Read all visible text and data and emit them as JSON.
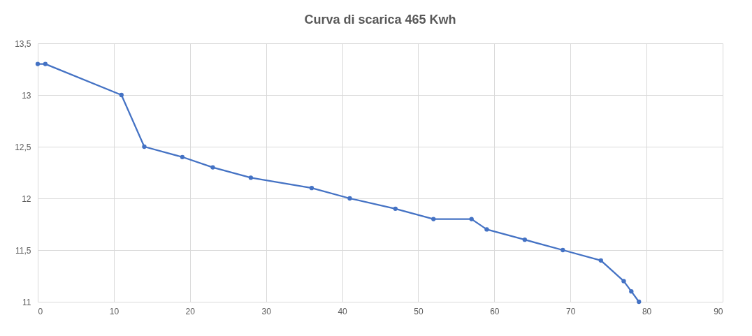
{
  "chart_data": {
    "type": "line",
    "title": "Curva di scarica 465 Kwh",
    "x": [
      0,
      1,
      11,
      14,
      19,
      23,
      28,
      36,
      41,
      47,
      52,
      57,
      59,
      64,
      69,
      74,
      77,
      78,
      79
    ],
    "series": [
      {
        "color": "#4472c4",
        "values": [
          13.3,
          13.3,
          13,
          12.5,
          12.4,
          12.3,
          12.2,
          12.1,
          12,
          11.9,
          11.8,
          11.8,
          11.7,
          11.6,
          11.5,
          11.4,
          11.2,
          11.1,
          11
        ]
      }
    ],
    "xlim": [
      0,
      90
    ],
    "xticks": [
      0,
      10,
      20,
      30,
      40,
      50,
      60,
      70,
      80,
      90
    ],
    "ylim": [
      11,
      13.5
    ],
    "yticks": [
      11,
      {
        "value": 11.5,
        "label": "11,5"
      },
      12,
      {
        "value": 12.5,
        "label": "12,5"
      },
      13,
      {
        "value": 13.5,
        "label": "13,5"
      }
    ],
    "grid": true,
    "marker": "circle",
    "line_style": "solid"
  }
}
